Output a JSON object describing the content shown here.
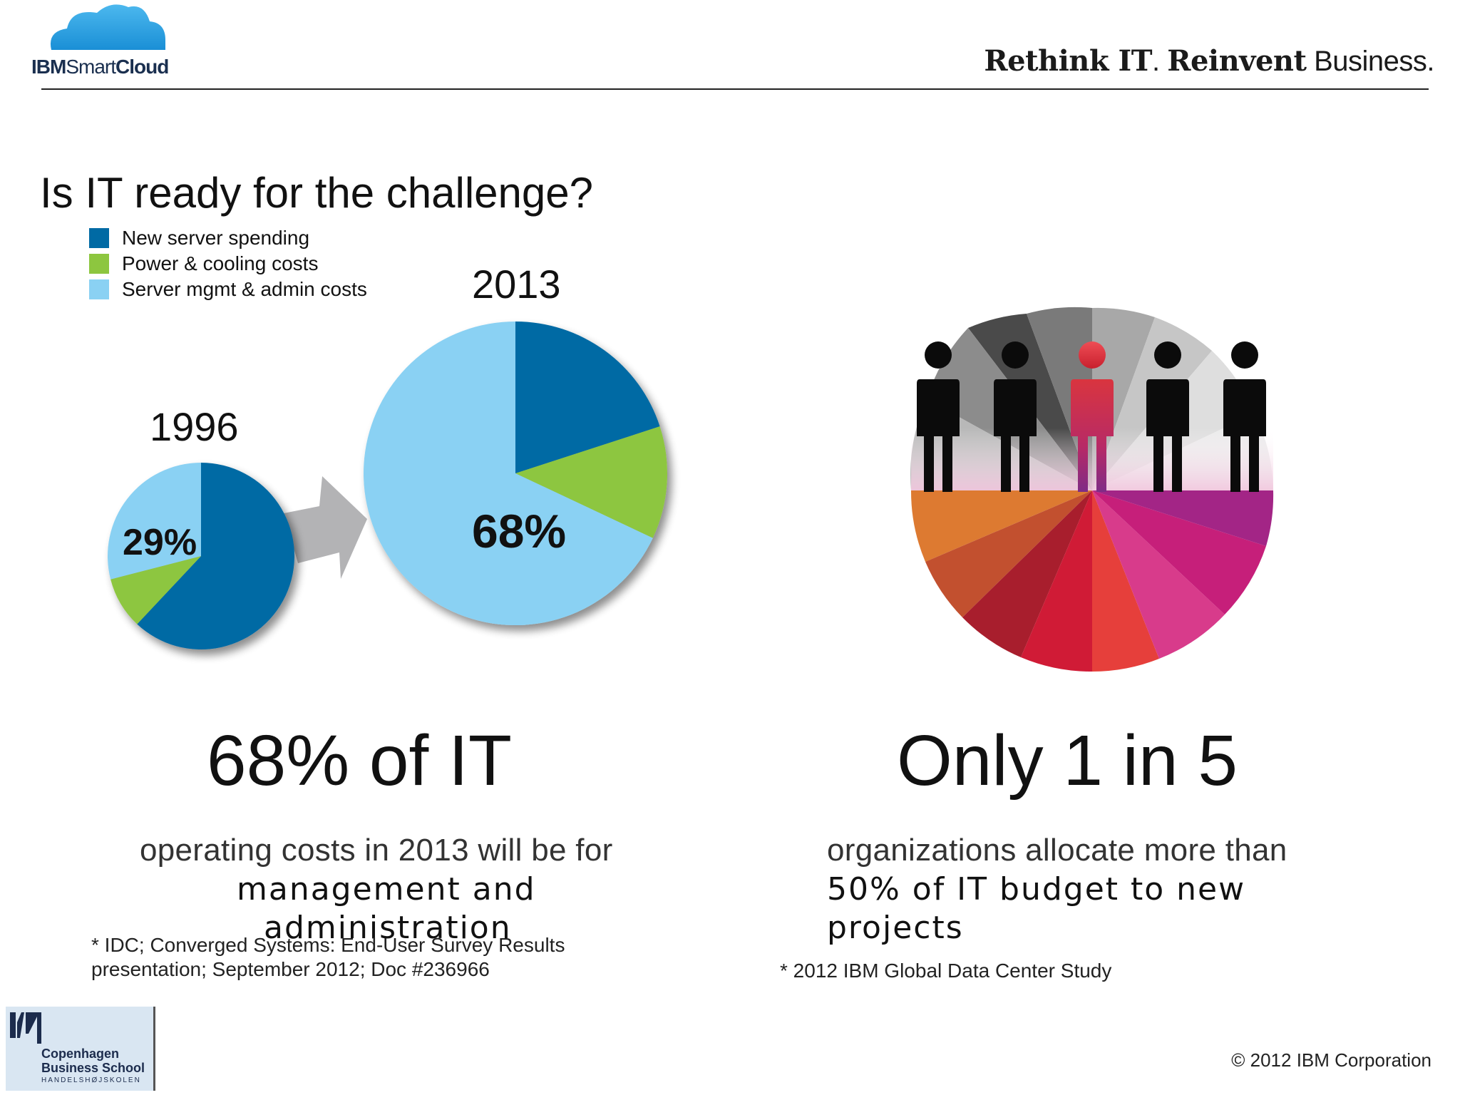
{
  "header": {
    "logo_ibm": "IBM",
    "logo_smart": "Smart",
    "logo_cloud": "Cloud",
    "tagline_bold1": "Rethink IT",
    "tagline_dot": ".",
    "tagline_bold2": "Reinvent",
    "tagline_light": "Business."
  },
  "title": "Is IT ready for the challenge?",
  "colors": {
    "new_server": "#006aa4",
    "power_cooling": "#8dc63f",
    "mgmt_admin": "#8ad1f3",
    "arrow": "#b3b3b5"
  },
  "chart_data": [
    {
      "type": "pie",
      "title": "1996",
      "labels": [
        "New server spending",
        "Power & cooling costs",
        "Server mgmt & admin costs"
      ],
      "values": [
        62,
        9,
        29
      ],
      "data_labels": [
        "",
        "",
        "29%"
      ]
    },
    {
      "type": "pie",
      "title": "2013",
      "labels": [
        "New server spending",
        "Power & cooling costs",
        "Server mgmt & admin costs"
      ],
      "values": [
        20,
        12,
        68
      ],
      "data_labels": [
        "",
        "",
        "68%"
      ]
    }
  ],
  "left": {
    "stat": "68% of IT",
    "line1": "operating costs in 2013 will be for",
    "line2": "management and",
    "line3": "administration",
    "foot1": "* IDC; Converged Systems: End-User Survey Results",
    "foot2": "presentation; September 2012; Doc #236966"
  },
  "right": {
    "stat": "Only 1 in 5",
    "line1": "organizations allocate more than",
    "line2": "50% of IT budget to new",
    "line3": "projects",
    "foot": "* 2012 IBM Global Data Center Study"
  },
  "footer": {
    "copyright": "© 2012 IBM Corporation",
    "cbs_line1": "Copenhagen",
    "cbs_line2": "Business School",
    "cbs_line3": "HANDELSHØJSKOLEN"
  }
}
